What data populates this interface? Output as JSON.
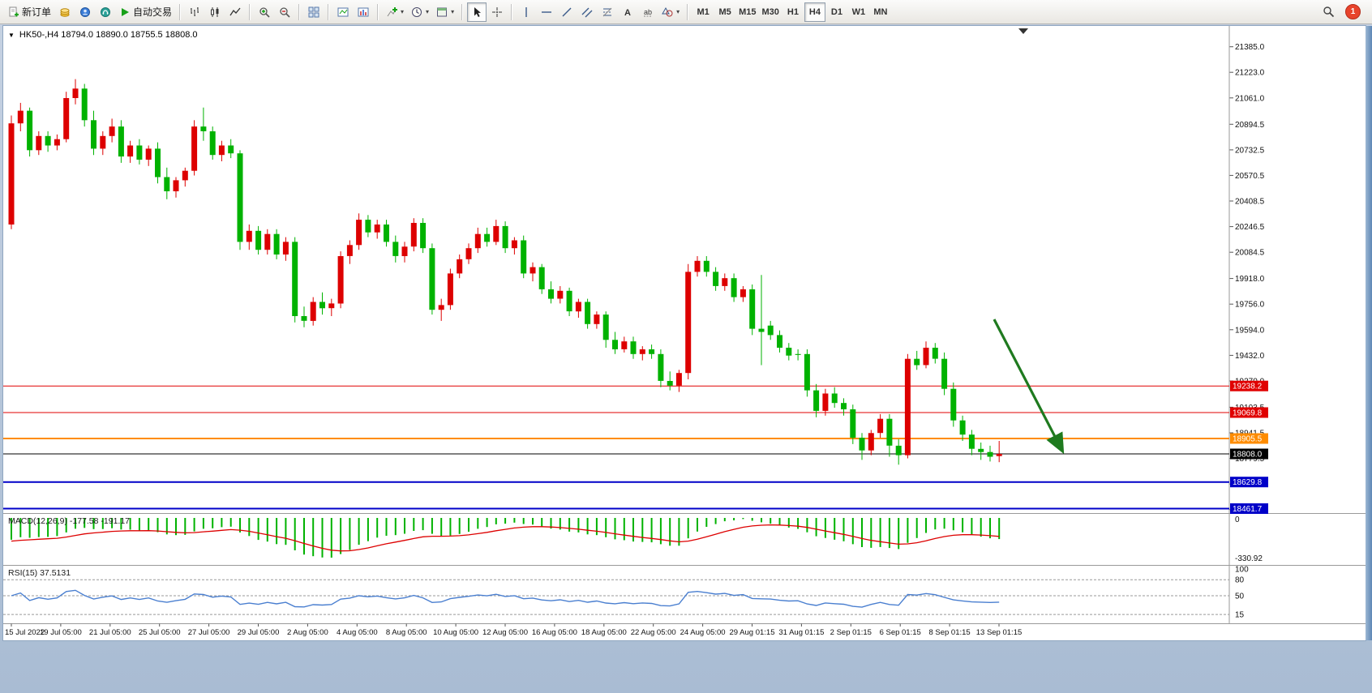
{
  "toolbar": {
    "new_order_label": "新订单",
    "auto_trading_label": "自动交易",
    "timeframes": {
      "m1": "M1",
      "m5": "M5",
      "m15": "M15",
      "m30": "M30",
      "h1": "H1",
      "h4": "H4",
      "d1": "D1",
      "w1": "W1",
      "mn": "MN",
      "active": "H4"
    },
    "notification_count": "1"
  },
  "indicators": {
    "macd": {
      "label": "MACD(12,26,9) -177.58 -191.17",
      "fast": 12,
      "slow": 26,
      "signal": 9,
      "value": -177.58,
      "signal_value": -191.17,
      "axis_top": "0",
      "axis_bottom": "-330.92",
      "hist_color": "#00b200",
      "signal_color": "#dd0000"
    },
    "rsi": {
      "label": "RSI(15) 37.5131",
      "period": 15,
      "value": 37.5131,
      "levels": [
        100,
        80,
        50,
        15
      ],
      "line_color": "#4a7fd0"
    }
  },
  "chart_data": {
    "type": "candlestick",
    "symbol": "HK50-",
    "timeframe": "H4",
    "header": "HK50-,H4 18794.0 18890.0 18755.5 18808.0",
    "last_bar": {
      "open": 18794.0,
      "high": 18890.0,
      "low": 18755.5,
      "close": 18808.0
    },
    "up_color": "#dd0000",
    "down_color": "#00b200",
    "price_axis_labels": [
      "21385.0",
      "21223.0",
      "21061.0",
      "20894.5",
      "20732.5",
      "20570.5",
      "20408.5",
      "20246.5",
      "20084.5",
      "19918.0",
      "19756.0",
      "19594.0",
      "19432.0",
      "19270.0",
      "19103.5",
      "18941.5",
      "18779.5",
      "18617.5",
      "18455.5"
    ],
    "horizontal_lines": [
      {
        "price": 19238.2,
        "label": "19238.2",
        "color": "#e00000",
        "width": 1,
        "role": "resistance-line"
      },
      {
        "price": 19069.8,
        "label": "19069.8",
        "color": "#e00000",
        "width": 1,
        "role": "resistance-line"
      },
      {
        "price": 18905.5,
        "label": "18905.5",
        "color": "#ff8c00",
        "width": 2,
        "role": "pivot-line"
      },
      {
        "price": 18808.0,
        "label": "18808.0",
        "color": "#000000",
        "width": 1,
        "role": "current-price-line"
      },
      {
        "price": 18629.8,
        "label": "18629.8",
        "color": "#0000c8",
        "width": 2,
        "role": "support-line"
      },
      {
        "price": 18461.7,
        "label": "18461.7",
        "color": "#0000c8",
        "width": 2,
        "role": "support-line"
      }
    ],
    "trend_arrow": {
      "color": "#1f7a1f",
      "direction": "down-right",
      "from_price": 19600,
      "to_price": 18780
    },
    "time_axis_labels": [
      "15 Jul 2022",
      "19 Jul 05:00",
      "21 Jul 05:00",
      "25 Jul 05:00",
      "27 Jul 05:00",
      "29 Jul 05:00",
      "2 Aug 05:00",
      "4 Aug 05:00",
      "8 Aug 05:00",
      "10 Aug 05:00",
      "12 Aug 05:00",
      "16 Aug 05:00",
      "18 Aug 05:00",
      "22 Aug 05:00",
      "24 Aug 05:00",
      "29 Aug 01:15",
      "31 Aug 01:15",
      "2 Sep 01:15",
      "6 Sep 01:15",
      "8 Sep 01:15",
      "13 Sep 01:15"
    ],
    "candles": [
      [
        20260,
        20950,
        20230,
        20900
      ],
      [
        20900,
        21030,
        20850,
        20980
      ],
      [
        20980,
        21000,
        20690,
        20730
      ],
      [
        20730,
        20850,
        20700,
        20820
      ],
      [
        20820,
        20850,
        20720,
        20760
      ],
      [
        20760,
        20830,
        20730,
        20800
      ],
      [
        20800,
        21100,
        20780,
        21060
      ],
      [
        21060,
        21180,
        21020,
        21120
      ],
      [
        21120,
        21150,
        20880,
        20920
      ],
      [
        20920,
        20980,
        20700,
        20740
      ],
      [
        20740,
        20850,
        20700,
        20820
      ],
      [
        20820,
        20930,
        20780,
        20880
      ],
      [
        20880,
        20920,
        20650,
        20690
      ],
      [
        20690,
        20790,
        20650,
        20760
      ],
      [
        20760,
        20800,
        20640,
        20670
      ],
      [
        20670,
        20760,
        20630,
        20740
      ],
      [
        20740,
        20780,
        20520,
        20560
      ],
      [
        20560,
        20620,
        20420,
        20470
      ],
      [
        20470,
        20560,
        20430,
        20540
      ],
      [
        20540,
        20620,
        20500,
        20600
      ],
      [
        20600,
        20920,
        20570,
        20880
      ],
      [
        20880,
        21000,
        20790,
        20850
      ],
      [
        20850,
        20880,
        20670,
        20700
      ],
      [
        20700,
        20790,
        20660,
        20760
      ],
      [
        20760,
        20800,
        20680,
        20710
      ],
      [
        20710,
        20730,
        20100,
        20150
      ],
      [
        20150,
        20260,
        20100,
        20220
      ],
      [
        20220,
        20250,
        20070,
        20100
      ],
      [
        20100,
        20230,
        20070,
        20200
      ],
      [
        20200,
        20230,
        20040,
        20070
      ],
      [
        20070,
        20180,
        20030,
        20150
      ],
      [
        20150,
        20180,
        19640,
        19680
      ],
      [
        19680,
        19740,
        19610,
        19650
      ],
      [
        19650,
        19800,
        19620,
        19770
      ],
      [
        19770,
        19830,
        19690,
        19730
      ],
      [
        19730,
        19790,
        19680,
        19760
      ],
      [
        19760,
        20090,
        19730,
        20060
      ],
      [
        20060,
        20160,
        20010,
        20130
      ],
      [
        20130,
        20330,
        20100,
        20290
      ],
      [
        20290,
        20320,
        20180,
        20210
      ],
      [
        20210,
        20290,
        20170,
        20260
      ],
      [
        20260,
        20290,
        20120,
        20150
      ],
      [
        20150,
        20190,
        20020,
        20060
      ],
      [
        20060,
        20150,
        20020,
        20120
      ],
      [
        20120,
        20300,
        20090,
        20270
      ],
      [
        20270,
        20300,
        20080,
        20110
      ],
      [
        20110,
        20140,
        19690,
        19720
      ],
      [
        19720,
        19790,
        19650,
        19750
      ],
      [
        19750,
        19980,
        19720,
        19950
      ],
      [
        19950,
        20070,
        19920,
        20040
      ],
      [
        20040,
        20140,
        20010,
        20110
      ],
      [
        20110,
        20240,
        20080,
        20200
      ],
      [
        20200,
        20240,
        20120,
        20150
      ],
      [
        20150,
        20290,
        20130,
        20250
      ],
      [
        20250,
        20280,
        20080,
        20110
      ],
      [
        20110,
        20180,
        20070,
        20160
      ],
      [
        20160,
        20190,
        19920,
        19950
      ],
      [
        19950,
        20020,
        19900,
        19990
      ],
      [
        19990,
        20010,
        19820,
        19850
      ],
      [
        19850,
        19900,
        19760,
        19790
      ],
      [
        19790,
        19870,
        19760,
        19840
      ],
      [
        19840,
        19860,
        19680,
        19710
      ],
      [
        19710,
        19790,
        19670,
        19770
      ],
      [
        19770,
        19790,
        19600,
        19630
      ],
      [
        19630,
        19710,
        19600,
        19690
      ],
      [
        19690,
        19710,
        19480,
        19530
      ],
      [
        19530,
        19580,
        19440,
        19470
      ],
      [
        19470,
        19550,
        19450,
        19520
      ],
      [
        19520,
        19550,
        19410,
        19440
      ],
      [
        19440,
        19490,
        19400,
        19470
      ],
      [
        19470,
        19500,
        19410,
        19440
      ],
      [
        19440,
        19470,
        19230,
        19270
      ],
      [
        19270,
        19330,
        19210,
        19240
      ],
      [
        19240,
        19340,
        19200,
        19320
      ],
      [
        19320,
        20010,
        19280,
        19960
      ],
      [
        19960,
        20060,
        19930,
        20030
      ],
      [
        20030,
        20060,
        19930,
        19960
      ],
      [
        19960,
        19990,
        19840,
        19870
      ],
      [
        19870,
        19950,
        19840,
        19920
      ],
      [
        19920,
        19950,
        19770,
        19800
      ],
      [
        19800,
        19870,
        19770,
        19850
      ],
      [
        19850,
        19880,
        19560,
        19600
      ],
      [
        19600,
        19940,
        19370,
        19580
      ],
      [
        19620,
        19650,
        19530,
        19560
      ],
      [
        19560,
        19590,
        19450,
        19480
      ],
      [
        19480,
        19510,
        19400,
        19430
      ],
      [
        19440,
        19470,
        19400,
        19440
      ],
      [
        19440,
        19470,
        19170,
        19210
      ],
      [
        19210,
        19250,
        19040,
        19080
      ],
      [
        19080,
        19220,
        19050,
        19190
      ],
      [
        19190,
        19230,
        19100,
        19130
      ],
      [
        19130,
        19160,
        19050,
        19090
      ],
      [
        19090,
        19120,
        18870,
        18910
      ],
      [
        18910,
        18940,
        18770,
        18830
      ],
      [
        18830,
        18960,
        18800,
        18940
      ],
      [
        18940,
        19060,
        18910,
        19030
      ],
      [
        19030,
        19060,
        18790,
        18860
      ],
      [
        18860,
        18900,
        18740,
        18800
      ],
      [
        18800,
        19440,
        18780,
        19410
      ],
      [
        19410,
        19460,
        19340,
        19370
      ],
      [
        19370,
        19520,
        19350,
        19480
      ],
      [
        19480,
        19510,
        19380,
        19410
      ],
      [
        19410,
        19450,
        19180,
        19220
      ],
      [
        19220,
        19260,
        18980,
        19020
      ],
      [
        19020,
        19050,
        18890,
        18930
      ],
      [
        18930,
        18960,
        18800,
        18840
      ],
      [
        18840,
        18880,
        18770,
        18820
      ],
      [
        18820,
        18860,
        18760,
        18790
      ],
      [
        18794,
        18890,
        18755.5,
        18808
      ]
    ]
  }
}
